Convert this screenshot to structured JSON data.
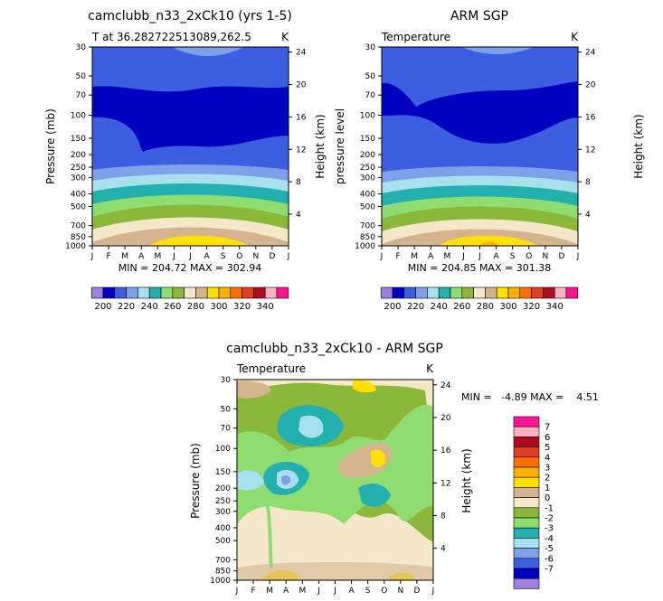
{
  "months": [
    "J",
    "F",
    "M",
    "A",
    "M",
    "J",
    "J",
    "A",
    "S",
    "O",
    "N",
    "D",
    "J"
  ],
  "pressure_ticks": [
    "30",
    "50",
    "70",
    "100",
    "150",
    "200",
    "250",
    "300",
    "400",
    "500",
    "700",
    "850",
    "1000"
  ],
  "colors": {
    "abs": [
      "#9f7fe0",
      "#0000c0",
      "#3b5fe0",
      "#7fa0ea",
      "#a8e0ee",
      "#23b0ae",
      "#8fdc70",
      "#8bb83a",
      "#f5e8c8",
      "#d4b48e",
      "#ffe000",
      "#ffb000",
      "#ff7000",
      "#e04020",
      "#b00a1f",
      "#ffb0c0",
      "#ff1493"
    ],
    "diff": [
      "#9f7fe0",
      "#0000c0",
      "#3b5fe0",
      "#7fa0ea",
      "#a8e0ee",
      "#23b0ae",
      "#8fdc70",
      "#8bb83a",
      "#f5e8c8",
      "#d4b48e",
      "#ffe000",
      "#ffb000",
      "#ff7000",
      "#e04020",
      "#b00a1f",
      "#ffb0c0",
      "#ff1493"
    ]
  },
  "panels": [
    {
      "title": "camclubb_n33_2xCk10 (yrs 1-5)",
      "subtitle_left": "T at 36.282722513089,262.5",
      "subtitle_right": "K",
      "ylabel_left": "Pressure (mb)",
      "ylabel_right": "Height (km)",
      "minmax": "MIN = 204.72  MAX = 302.94"
    },
    {
      "title": "ARM SGP",
      "subtitle_left": "Temperature",
      "subtitle_right": "K",
      "ylabel_left": "pressure level",
      "ylabel_right": "Height (km)",
      "minmax": "MIN = 204.85  MAX = 301.38"
    },
    {
      "title": "camclubb_n33_2xCk10 - ARM SGP",
      "subtitle_left": "Temperature",
      "subtitle_right": "K",
      "ylabel_left": "Pressure (mb)",
      "ylabel_right": "Height (km)",
      "minmax": "MIN =   -4.89 MAX =    4.51"
    }
  ],
  "chart_data": [
    {
      "type": "contour",
      "title": "camclubb_n33_2xCk10 (yrs 1-5)",
      "variable": "T at 36.282722513089,262.5",
      "units": "K",
      "x": [
        "J",
        "F",
        "M",
        "A",
        "M",
        "J",
        "J",
        "A",
        "S",
        "O",
        "N",
        "D",
        "J"
      ],
      "y_pressure_mb": [
        30,
        50,
        70,
        100,
        150,
        200,
        250,
        300,
        400,
        500,
        700,
        850,
        1000
      ],
      "y_height_km": [
        4,
        8,
        12,
        16,
        20,
        24
      ],
      "min": 204.72,
      "max": 302.94
    },
    {
      "type": "contour",
      "title": "ARM SGP",
      "variable": "Temperature",
      "units": "K",
      "x": [
        "J",
        "F",
        "M",
        "A",
        "M",
        "J",
        "J",
        "A",
        "S",
        "O",
        "N",
        "D",
        "J"
      ],
      "y_pressure_mb": [
        30,
        50,
        70,
        100,
        150,
        200,
        250,
        300,
        400,
        500,
        700,
        850,
        1000
      ],
      "y_height_km": [
        4,
        8,
        12,
        16,
        20,
        24
      ],
      "min": 204.85,
      "max": 301.38
    },
    {
      "type": "contour",
      "title": "camclubb_n33_2xCk10 - ARM SGP",
      "variable": "Temperature",
      "units": "K",
      "x": [
        "J",
        "F",
        "M",
        "A",
        "M",
        "J",
        "J",
        "A",
        "S",
        "O",
        "N",
        "D",
        "J"
      ],
      "y_pressure_mb": [
        30,
        50,
        70,
        100,
        150,
        200,
        250,
        300,
        400,
        500,
        700,
        850,
        1000
      ],
      "y_height_km": [
        4,
        8,
        12,
        16,
        20,
        24
      ],
      "min": -4.89,
      "max": 4.51
    }
  ],
  "colorbar_abs": {
    "labels": [
      "200",
      "220",
      "240",
      "260",
      "280",
      "300",
      "320",
      "340"
    ]
  },
  "colorbar_diff": {
    "labels": [
      "7",
      "6",
      "5",
      "4",
      "3",
      "2",
      "1",
      "0",
      "-1",
      "-2",
      "-3",
      "-4",
      "-5",
      "-6",
      "-7"
    ]
  }
}
